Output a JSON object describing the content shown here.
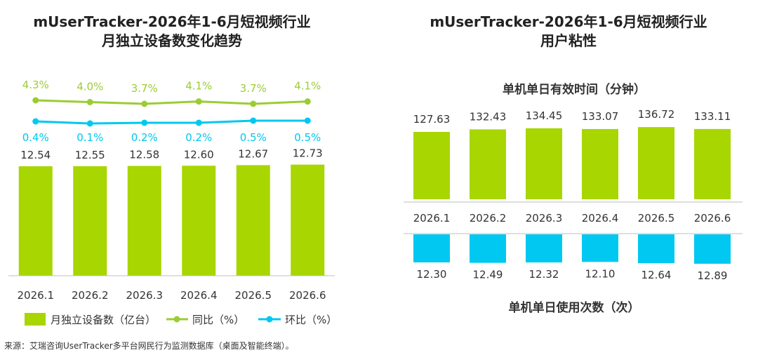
{
  "left_chart": {
    "title_line1": "mUserTracker-2026年1-6月短视频行业",
    "title_line2": "月独立设备数变化趋势"
  },
  "right_chart": {
    "title_line1": "mUserTracker-2026年1-6月短视频行业",
    "title_line2": "用户粘性"
  },
  "source": "来源：艾瑞咨询UserTracker多平台网民行为监测数据库（桌面及智能终端）。",
  "colors": {
    "green": "#a8d600",
    "line_green": "#9acd32",
    "cyan": "#00c8f0"
  },
  "chart_data": [
    {
      "type": "bar",
      "categories": [
        "2026.1",
        "2026.2",
        "2026.3",
        "2026.4",
        "2026.5",
        "2026.6"
      ],
      "series": [
        {
          "name": "月独立设备数（亿台）",
          "type": "bar",
          "values": [
            12.54,
            12.55,
            12.58,
            12.6,
            12.67,
            12.73
          ],
          "labels": [
            "12.54",
            "12.55",
            "12.58",
            "12.60",
            "12.67",
            "12.73"
          ]
        },
        {
          "name": "同比（%）",
          "type": "line",
          "values": [
            4.3,
            4.0,
            3.7,
            4.1,
            3.7,
            4.1
          ],
          "labels": [
            "4.3%",
            "4.0%",
            "3.7%",
            "4.1%",
            "3.7%",
            "4.1%"
          ]
        },
        {
          "name": "环比（%）",
          "type": "line",
          "values": [
            0.4,
            0.1,
            0.2,
            0.2,
            0.5,
            0.5
          ],
          "labels": [
            "0.4%",
            "0.1%",
            "0.2%",
            "0.2%",
            "0.5%",
            "0.5%"
          ]
        }
      ],
      "legend_position": "bottom"
    },
    {
      "type": "bar",
      "categories": [
        "2026.1",
        "2026.2",
        "2026.3",
        "2026.4",
        "2026.5",
        "2026.6"
      ],
      "series": [
        {
          "name": "单机单日有效时间（分钟）",
          "values": [
            127.63,
            132.43,
            134.45,
            133.07,
            136.72,
            133.11
          ],
          "labels": [
            "127.63",
            "132.43",
            "134.45",
            "133.07",
            "136.72",
            "133.11"
          ]
        },
        {
          "name": "单机单日使用次数（次）",
          "values": [
            12.3,
            12.49,
            12.32,
            12.1,
            12.64,
            12.89
          ],
          "labels": [
            "12.30",
            "12.49",
            "12.32",
            "12.10",
            "12.64",
            "12.89"
          ]
        }
      ]
    }
  ]
}
